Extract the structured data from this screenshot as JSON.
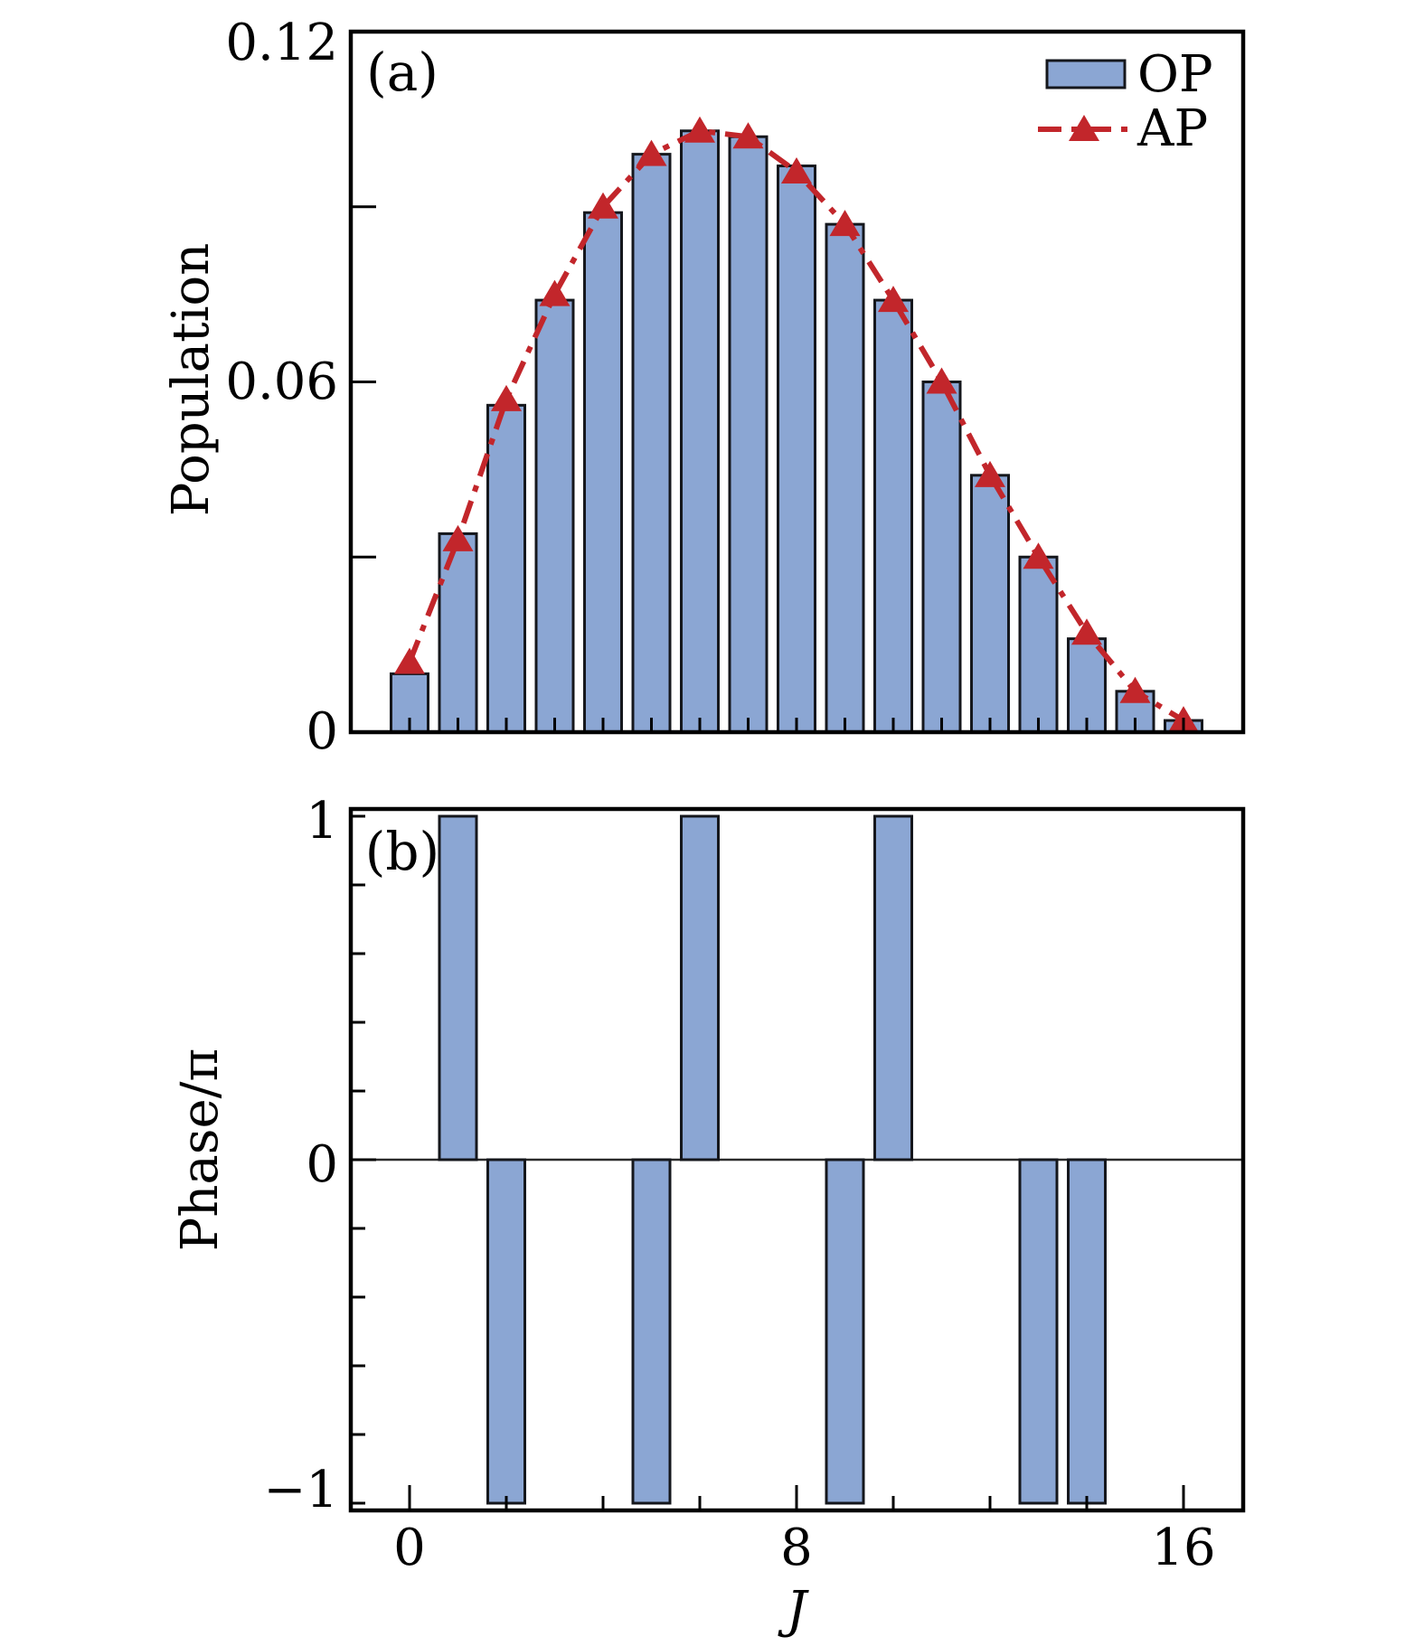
{
  "colors": {
    "background": "#ffffff",
    "bar_fill": "#8BA6D3",
    "bar_edge": "#15171C",
    "line_red": "#C2262B",
    "axis": "#000000",
    "zero_line": "#2B2B2B"
  },
  "panel_a": {
    "tag": "(a)",
    "ylabel": "Population",
    "ytick_labels": [
      {
        "value": 0.12,
        "text": "0.12"
      },
      {
        "value": 0.06,
        "text": "0.06"
      },
      {
        "value": 0,
        "text": "0"
      }
    ],
    "yticks_unlabeled": [
      0.03,
      0.06,
      0.09
    ],
    "legend": [
      {
        "label": "OP",
        "marker": "bar-swatch"
      },
      {
        "label": "AP",
        "marker": "dashdot-triangle"
      }
    ]
  },
  "panel_b": {
    "tag": "(b)",
    "ylabel": "Phase/π",
    "ytick_labels": [
      {
        "value": 1,
        "text": "1"
      },
      {
        "value": 0,
        "text": "0"
      },
      {
        "value": -1,
        "text": "−1"
      }
    ],
    "yticks_minor": [
      -1,
      -0.8,
      -0.6,
      -0.4,
      -0.2,
      0.2,
      0.4,
      0.6,
      0.8,
      1
    ],
    "yticks_major": [
      0
    ]
  },
  "x_axis": {
    "label": "J",
    "tick_labels": [
      {
        "value": 0,
        "text": "0"
      },
      {
        "value": 8,
        "text": "8"
      },
      {
        "value": 16,
        "text": "16"
      }
    ]
  },
  "chart_data": [
    {
      "id": "panel_a",
      "type": "bar",
      "title": "(a)",
      "xlabel": "J",
      "ylabel": "Population",
      "x": [
        0,
        1,
        2,
        3,
        4,
        5,
        6,
        7,
        8,
        9,
        10,
        11,
        12,
        13,
        14,
        15,
        16
      ],
      "xlim": [
        -1.2,
        17.2
      ],
      "ylim": [
        0,
        0.12
      ],
      "grid": false,
      "legend_position": "upper-right",
      "series": [
        {
          "name": "OP",
          "type": "bar",
          "values": [
            0.01,
            0.034,
            0.056,
            0.074,
            0.089,
            0.099,
            0.103,
            0.102,
            0.097,
            0.087,
            0.074,
            0.06,
            0.044,
            0.03,
            0.016,
            0.007,
            0.002
          ]
        },
        {
          "name": "AP",
          "type": "line",
          "linestyle": "dash-dot",
          "marker": "triangle-up",
          "values": [
            0.012,
            0.033,
            0.057,
            0.075,
            0.09,
            0.099,
            0.103,
            0.102,
            0.096,
            0.087,
            0.074,
            0.06,
            0.044,
            0.03,
            0.017,
            0.007,
            0.002
          ]
        }
      ]
    },
    {
      "id": "panel_b",
      "type": "bar",
      "title": "(b)",
      "xlabel": "J",
      "ylabel": "Phase/π",
      "x": [
        0,
        1,
        2,
        3,
        4,
        5,
        6,
        7,
        8,
        9,
        10,
        11,
        12,
        13,
        14,
        15,
        16
      ],
      "xlim": [
        -1.2,
        17.2
      ],
      "ylim": [
        -1.02,
        1.02
      ],
      "grid": false,
      "series": [
        {
          "name": "Phase",
          "type": "bar",
          "values": [
            0,
            1,
            -1,
            0,
            0,
            -1,
            1,
            0,
            0,
            -1,
            1,
            0,
            0,
            -1,
            -1,
            0,
            0
          ]
        }
      ]
    }
  ]
}
